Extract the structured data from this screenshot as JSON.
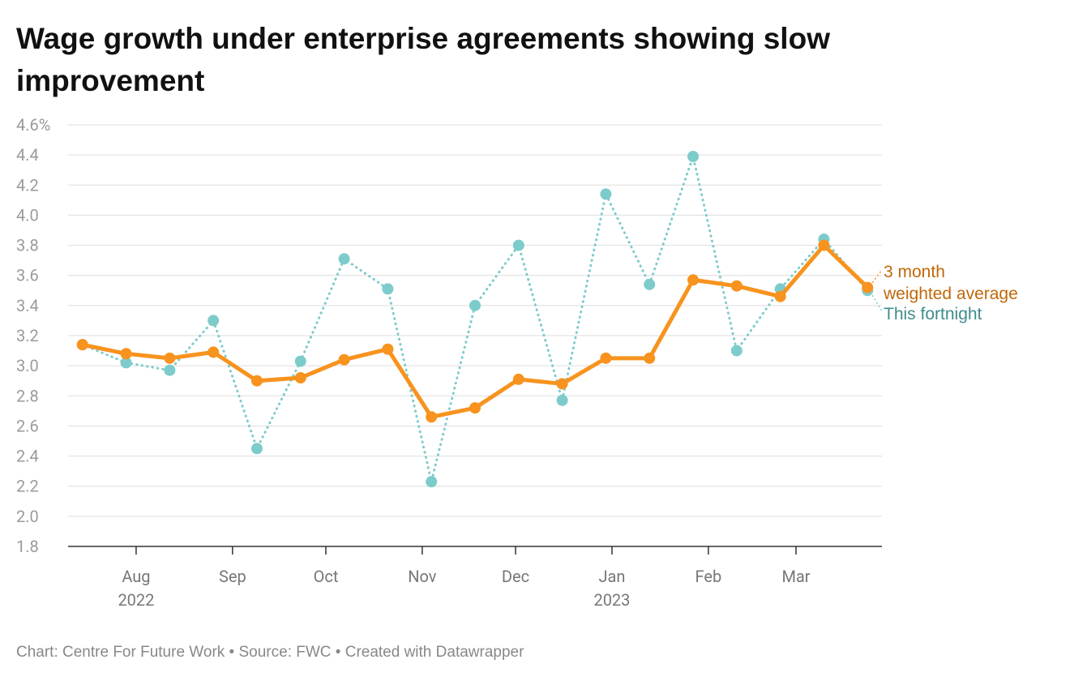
{
  "chart_data": {
    "type": "line",
    "title": "Wage growth under enterprise agreements showing slow improvement",
    "footer": "Chart: Centre For Future Work • Source: FWC • Created with Datawrapper",
    "ylim": [
      1.8,
      4.6
    ],
    "yticks": [
      1.8,
      {
        "value": 2,
        "label": "2.0"
      },
      2.2,
      2.4,
      2.6,
      2.8,
      {
        "value": 3,
        "label": "3.0"
      },
      3.2,
      3.4,
      3.6,
      3.8,
      {
        "value": 4,
        "label": "4.0"
      },
      4.2,
      4.4,
      {
        "value": 4.6,
        "label": "4.6%"
      }
    ],
    "xlim": [
      -0.33,
      18.33
    ],
    "xticks": [
      {
        "value": 1.23,
        "label": "Aug"
      },
      {
        "value": 3.44,
        "label": "Sep"
      },
      {
        "value": 5.58,
        "label": "Oct"
      },
      {
        "value": 7.79,
        "label": "Nov"
      },
      {
        "value": 9.93,
        "label": "Dec"
      },
      {
        "value": 12.14,
        "label": "Jan"
      },
      {
        "value": 14.35,
        "label": "Feb"
      },
      {
        "value": 16.36,
        "label": "Mar"
      }
    ],
    "xtick_years": [
      {
        "value": 1.23,
        "label": "2022"
      },
      {
        "value": 12.14,
        "label": "2023"
      }
    ],
    "grid": true,
    "series": [
      {
        "name": "This fortnight",
        "color": "#7ecbcb",
        "label_color": "#3f8c8c",
        "style": "dotted",
        "values": [
          3.14,
          3.02,
          2.97,
          3.3,
          2.45,
          3.03,
          3.71,
          3.51,
          2.23,
          3.4,
          3.8,
          2.77,
          4.14,
          3.54,
          4.39,
          3.1,
          3.51,
          3.84,
          3.5
        ]
      },
      {
        "name": "3 month\nweighted average",
        "color": "#f7931e",
        "label_color": "#c0680a",
        "style": "solid",
        "values": [
          3.14,
          3.08,
          3.05,
          3.09,
          2.9,
          2.92,
          3.04,
          3.11,
          2.66,
          2.72,
          2.91,
          2.88,
          3.05,
          3.05,
          3.57,
          3.53,
          3.46,
          3.8,
          3.52
        ]
      }
    ]
  }
}
